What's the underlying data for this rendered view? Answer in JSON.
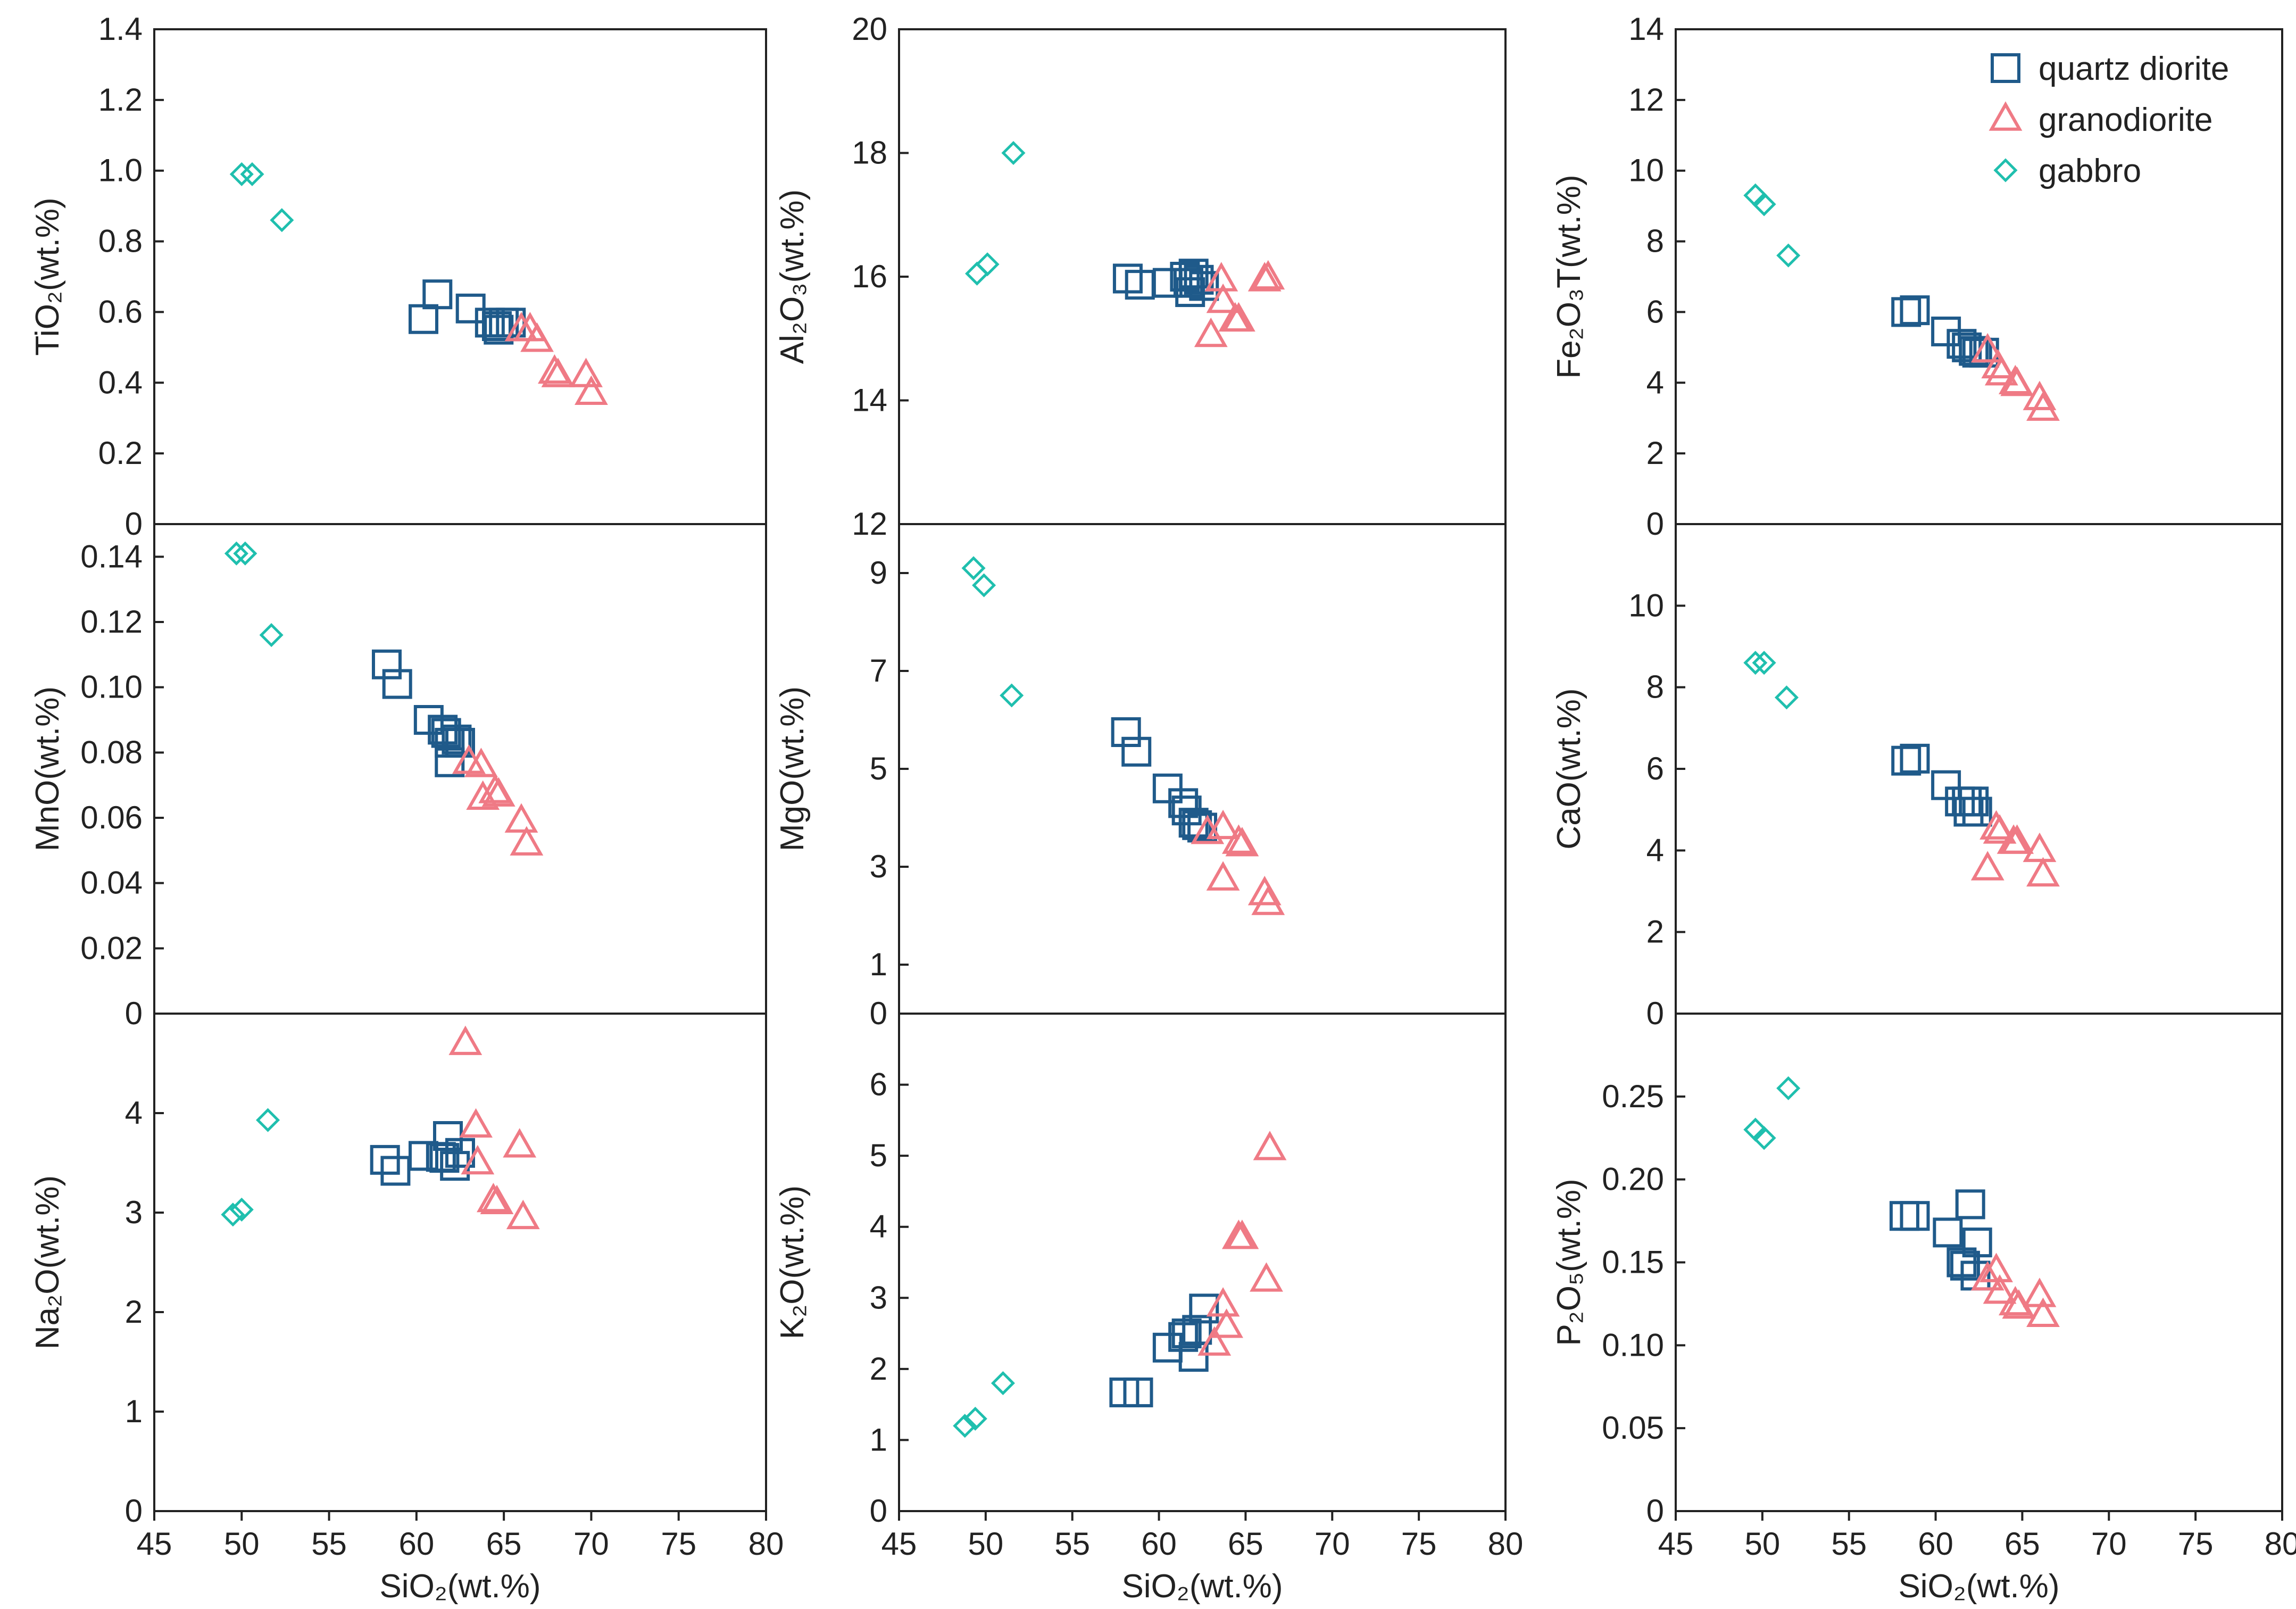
{
  "chart_data": [
    {
      "id": "tio2",
      "type": "scatter",
      "ylabel": "TiO₂(wt.%)",
      "xlabel": "",
      "xlim": [
        45,
        80
      ],
      "ylim": [
        0,
        1.4
      ],
      "xticks": [
        "45",
        "50",
        "55",
        "60",
        "65",
        "70",
        "75",
        "80"
      ],
      "yticks": [
        "0",
        "0.2",
        "0.4",
        "0.6",
        "0.8",
        "1.0",
        "1.2",
        "1.4"
      ],
      "series": [
        {
          "name": "quartz diorite",
          "points": [
            [
              60.4,
              0.58
            ],
            [
              61.2,
              0.65
            ],
            [
              63.1,
              0.61
            ],
            [
              64.2,
              0.57
            ],
            [
              64.6,
              0.56
            ],
            [
              65.0,
              0.57
            ],
            [
              65.4,
              0.57
            ],
            [
              64.7,
              0.55
            ]
          ]
        },
        {
          "name": "granodiorite",
          "points": [
            [
              66.0,
              0.55
            ],
            [
              66.5,
              0.55
            ],
            [
              66.9,
              0.52
            ],
            [
              67.9,
              0.43
            ],
            [
              68.1,
              0.42
            ],
            [
              69.7,
              0.42
            ],
            [
              70.0,
              0.37
            ]
          ]
        },
        {
          "name": "gabbro",
          "points": [
            [
              50.0,
              0.99
            ],
            [
              50.6,
              0.99
            ],
            [
              52.3,
              0.86
            ]
          ]
        }
      ]
    },
    {
      "id": "al2o3",
      "type": "scatter",
      "ylabel": "Al₂O₃(wt.%)",
      "xlabel": "",
      "xlim": [
        45,
        80
      ],
      "ylim": [
        12,
        20
      ],
      "xticks": [
        "45",
        "50",
        "55",
        "60",
        "65",
        "70",
        "75",
        "80"
      ],
      "yticks": [
        "12",
        "14",
        "16",
        "18",
        "20"
      ],
      "series": [
        {
          "name": "quartz diorite",
          "points": [
            [
              58.2,
              15.97
            ],
            [
              58.9,
              15.87
            ],
            [
              60.5,
              15.9
            ],
            [
              61.5,
              16.0
            ],
            [
              61.8,
              15.75
            ],
            [
              62.0,
              16.05
            ],
            [
              62.3,
              15.95
            ],
            [
              62.6,
              15.85
            ],
            [
              61.7,
              15.9
            ]
          ]
        },
        {
          "name": "granodiorite",
          "points": [
            [
              63.0,
              15.05
            ],
            [
              63.6,
              15.95
            ],
            [
              63.7,
              15.6
            ],
            [
              64.4,
              15.3
            ],
            [
              64.6,
              15.3
            ],
            [
              66.1,
              15.95
            ],
            [
              66.3,
              15.98
            ]
          ]
        },
        {
          "name": "gabbro",
          "points": [
            [
              49.5,
              16.05
            ],
            [
              50.1,
              16.2
            ],
            [
              51.6,
              18.0
            ]
          ]
        }
      ]
    },
    {
      "id": "fe2o3t",
      "type": "scatter",
      "ylabel": "Fe₂O₃T(wt.%)",
      "xlabel": "",
      "xlim": [
        45,
        80
      ],
      "ylim": [
        0,
        14
      ],
      "xticks": [
        "45",
        "50",
        "55",
        "60",
        "65",
        "70",
        "75",
        "80"
      ],
      "yticks": [
        "0",
        "2",
        "4",
        "6",
        "8",
        "10",
        "12",
        "14"
      ],
      "series": [
        {
          "name": "quartz diorite",
          "points": [
            [
              58.3,
              6.0
            ],
            [
              58.8,
              6.05
            ],
            [
              60.6,
              5.45
            ],
            [
              61.5,
              5.1
            ],
            [
              61.8,
              5.0
            ],
            [
              62.2,
              4.9
            ],
            [
              62.4,
              4.85
            ],
            [
              62.8,
              4.85
            ]
          ]
        },
        {
          "name": "granodiorite",
          "points": [
            [
              63.0,
              4.9
            ],
            [
              63.6,
              4.45
            ],
            [
              63.8,
              4.25
            ],
            [
              64.6,
              4.0
            ],
            [
              64.7,
              3.95
            ],
            [
              66.0,
              3.55
            ],
            [
              66.2,
              3.25
            ]
          ]
        },
        {
          "name": "gabbro",
          "points": [
            [
              49.6,
              9.3
            ],
            [
              50.1,
              9.05
            ],
            [
              51.5,
              7.6
            ]
          ]
        }
      ]
    },
    {
      "id": "mno",
      "type": "scatter",
      "ylabel": "MnO(wt.%)",
      "xlabel": "",
      "xlim": [
        45,
        80
      ],
      "ylim": [
        0,
        0.15
      ],
      "xticks": [
        "45",
        "50",
        "55",
        "60",
        "65",
        "70",
        "75",
        "80"
      ],
      "yticks": [
        "0",
        "0.02",
        "0.04",
        "0.06",
        "0.08",
        "0.10",
        "0.12",
        "0.14"
      ],
      "series": [
        {
          "name": "quartz diorite",
          "points": [
            [
              58.3,
              0.107
            ],
            [
              58.9,
              0.101
            ],
            [
              60.7,
              0.09
            ],
            [
              61.5,
              0.087
            ],
            [
              61.7,
              0.086
            ],
            [
              61.9,
              0.083
            ],
            [
              62.3,
              0.084
            ],
            [
              62.5,
              0.083
            ],
            [
              61.9,
              0.077
            ]
          ]
        },
        {
          "name": "granodiorite",
          "points": [
            [
              63.0,
              0.077
            ],
            [
              63.7,
              0.076
            ],
            [
              63.8,
              0.066
            ],
            [
              64.5,
              0.068
            ],
            [
              64.7,
              0.067
            ],
            [
              66.0,
              0.059
            ],
            [
              66.3,
              0.052
            ]
          ]
        },
        {
          "name": "gabbro",
          "points": [
            [
              49.7,
              0.141
            ],
            [
              50.2,
              0.141
            ],
            [
              51.7,
              0.116
            ]
          ]
        }
      ]
    },
    {
      "id": "mgo",
      "type": "scatter",
      "ylabel": "MgO(wt.%)",
      "xlabel": "",
      "xlim": [
        45,
        80
      ],
      "ylim": [
        0,
        10
      ],
      "xticks": [
        "45",
        "50",
        "55",
        "60",
        "65",
        "70",
        "75",
        "80"
      ],
      "yticks": [
        "0",
        "1",
        "3",
        "5",
        "7",
        "9"
      ],
      "series": [
        {
          "name": "quartz diorite",
          "points": [
            [
              58.1,
              5.75
            ],
            [
              58.7,
              5.35
            ],
            [
              60.5,
              4.6
            ],
            [
              61.4,
              4.3
            ],
            [
              61.6,
              4.15
            ],
            [
              62.0,
              3.9
            ],
            [
              62.2,
              3.85
            ],
            [
              62.5,
              3.8
            ]
          ]
        },
        {
          "name": "granodiorite",
          "points": [
            [
              62.8,
              3.7
            ],
            [
              63.7,
              3.8
            ],
            [
              63.7,
              2.75
            ],
            [
              64.6,
              3.5
            ],
            [
              64.8,
              3.45
            ],
            [
              66.1,
              2.45
            ],
            [
              66.3,
              2.25
            ]
          ]
        },
        {
          "name": "gabbro",
          "points": [
            [
              49.3,
              9.1
            ],
            [
              49.9,
              8.75
            ],
            [
              51.5,
              6.5
            ]
          ]
        }
      ]
    },
    {
      "id": "cao",
      "type": "scatter",
      "ylabel": "CaO(wt.%)",
      "xlabel": "",
      "xlim": [
        45,
        80
      ],
      "ylim": [
        0,
        12
      ],
      "xticks": [
        "45",
        "50",
        "55",
        "60",
        "65",
        "70",
        "75",
        "80"
      ],
      "yticks": [
        "0",
        "2",
        "4",
        "6",
        "8",
        "10"
      ],
      "series": [
        {
          "name": "quartz diorite",
          "points": [
            [
              58.3,
              6.2
            ],
            [
              58.8,
              6.25
            ],
            [
              60.6,
              5.6
            ],
            [
              61.4,
              5.2
            ],
            [
              61.8,
              5.2
            ],
            [
              62.2,
              5.2
            ],
            [
              62.4,
              4.95
            ],
            [
              61.9,
              4.95
            ]
          ]
        },
        {
          "name": "granodiorite",
          "points": [
            [
              63.0,
              3.55
            ],
            [
              63.5,
              4.55
            ],
            [
              63.7,
              4.45
            ],
            [
              64.5,
              4.2
            ],
            [
              64.7,
              4.2
            ],
            [
              66.0,
              4.0
            ],
            [
              66.2,
              3.4
            ]
          ]
        },
        {
          "name": "gabbro",
          "points": [
            [
              49.6,
              8.6
            ],
            [
              50.1,
              8.6
            ],
            [
              51.4,
              7.75
            ]
          ]
        }
      ]
    },
    {
      "id": "na2o",
      "type": "scatter",
      "ylabel": "Na₂O(wt.%)",
      "xlabel": "SiO₂(wt.%)",
      "xlim": [
        45,
        80
      ],
      "ylim": [
        0,
        5
      ],
      "xticks": [
        "45",
        "50",
        "55",
        "60",
        "65",
        "70",
        "75",
        "80"
      ],
      "yticks": [
        "0",
        "1",
        "2",
        "3",
        "4"
      ],
      "series": [
        {
          "name": "quartz diorite",
          "points": [
            [
              58.2,
              3.53
            ],
            [
              58.8,
              3.42
            ],
            [
              60.4,
              3.57
            ],
            [
              61.4,
              3.56
            ],
            [
              61.6,
              3.55
            ],
            [
              61.8,
              3.77
            ],
            [
              62.2,
              3.47
            ],
            [
              62.5,
              3.6
            ]
          ]
        },
        {
          "name": "granodiorite",
          "points": [
            [
              62.8,
              4.7
            ],
            [
              63.4,
              3.87
            ],
            [
              63.5,
              3.5
            ],
            [
              64.4,
              3.12
            ],
            [
              64.6,
              3.1
            ],
            [
              65.9,
              3.67
            ],
            [
              66.1,
              2.95
            ]
          ]
        },
        {
          "name": "gabbro",
          "points": [
            [
              49.5,
              2.98
            ],
            [
              50.0,
              3.03
            ],
            [
              51.5,
              3.93
            ]
          ]
        }
      ]
    },
    {
      "id": "k2o",
      "type": "scatter",
      "ylabel": "K₂O(wt.%)",
      "xlabel": "SiO₂(wt.%)",
      "xlim": [
        45,
        80
      ],
      "ylim": [
        0,
        7
      ],
      "xticks": [
        "45",
        "50",
        "55",
        "60",
        "65",
        "70",
        "75",
        "80"
      ],
      "yticks": [
        "0",
        "1",
        "2",
        "3",
        "4",
        "5",
        "6"
      ],
      "series": [
        {
          "name": "quartz diorite",
          "points": [
            [
              58.0,
              1.67
            ],
            [
              58.8,
              1.67
            ],
            [
              60.5,
              2.3
            ],
            [
              61.4,
              2.45
            ],
            [
              61.6,
              2.5
            ],
            [
              62.2,
              2.55
            ],
            [
              62.6,
              2.85
            ],
            [
              62.0,
              2.17
            ]
          ]
        },
        {
          "name": "granodiorite",
          "points": [
            [
              63.2,
              2.35
            ],
            [
              63.7,
              2.9
            ],
            [
              63.9,
              2.6
            ],
            [
              64.6,
              3.85
            ],
            [
              64.8,
              3.85
            ],
            [
              66.2,
              3.25
            ],
            [
              66.4,
              5.1
            ]
          ]
        },
        {
          "name": "gabbro",
          "points": [
            [
              48.8,
              1.2
            ],
            [
              49.4,
              1.3
            ],
            [
              51.0,
              1.8
            ]
          ]
        }
      ]
    },
    {
      "id": "p2o5",
      "type": "scatter",
      "ylabel": "P₂O₅(wt.%)",
      "xlabel": "SiO₂(wt.%)",
      "xlim": [
        45,
        80
      ],
      "ylim": [
        0,
        0.3
      ],
      "xticks": [
        "45",
        "50",
        "55",
        "60",
        "65",
        "70",
        "75",
        "80"
      ],
      "yticks": [
        "0",
        "0.05",
        "0.10",
        "0.15",
        "0.20",
        "0.25"
      ],
      "series": [
        {
          "name": "quartz diorite",
          "points": [
            [
              58.2,
              0.178
            ],
            [
              58.8,
              0.178
            ],
            [
              60.7,
              0.168
            ],
            [
              61.5,
              0.15
            ],
            [
              61.7,
              0.148
            ],
            [
              62.0,
              0.185
            ],
            [
              62.4,
              0.162
            ],
            [
              62.3,
              0.142
            ]
          ]
        },
        {
          "name": "granodiorite",
          "points": [
            [
              63.0,
              0.14
            ],
            [
              63.5,
              0.145
            ],
            [
              63.7,
              0.132
            ],
            [
              64.6,
              0.125
            ],
            [
              64.8,
              0.123
            ],
            [
              66.0,
              0.13
            ],
            [
              66.2,
              0.118
            ]
          ]
        },
        {
          "name": "gabbro",
          "points": [
            [
              49.6,
              0.23
            ],
            [
              50.1,
              0.225
            ],
            [
              51.5,
              0.255
            ]
          ]
        }
      ]
    }
  ],
  "legend": [
    {
      "label": "quartz diorite",
      "marker": "square",
      "color": "#1f5a8a"
    },
    {
      "label": "granodiorite",
      "marker": "triangle",
      "color": "#ef7a85"
    },
    {
      "label": "gabbro",
      "marker": "diamond",
      "color": "#1fbfae"
    }
  ]
}
